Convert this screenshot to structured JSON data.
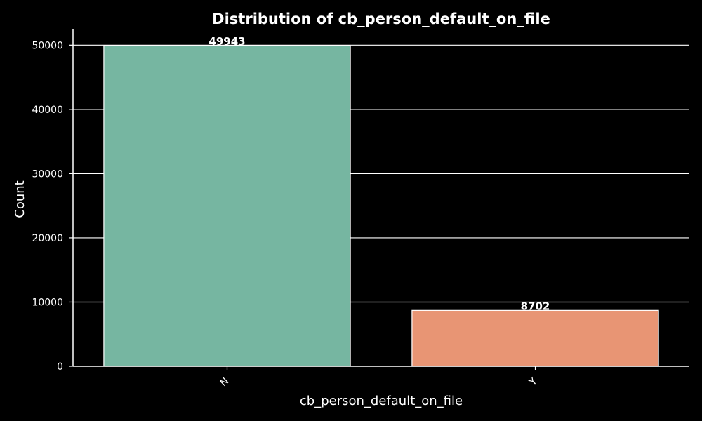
{
  "chart_data": {
    "type": "bar",
    "title": "Distribution of cb_person_default_on_file",
    "xlabel": "cb_person_default_on_file",
    "ylabel": "Count",
    "categories": [
      "N",
      "Y"
    ],
    "values": [
      49943,
      8702
    ],
    "value_labels": [
      "49943",
      "8702"
    ],
    "ylim": [
      0,
      52440
    ],
    "yticks": [
      0,
      10000,
      20000,
      30000,
      40000,
      50000
    ],
    "ytick_labels": [
      "0",
      "10000",
      "20000",
      "30000",
      "40000",
      "50000"
    ],
    "grid": "y",
    "colors": [
      "#76b6a1",
      "#e89574"
    ]
  },
  "style": {
    "background": "#000000",
    "foreground": "#ffffff"
  }
}
